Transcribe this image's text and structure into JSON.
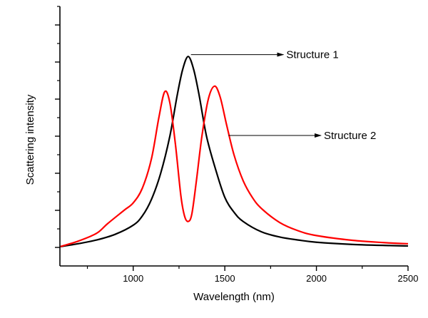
{
  "chart_data": {
    "type": "line",
    "title": "",
    "xlabel": "Wavelength (nm)",
    "ylabel": "Scattering intensity",
    "xlim": [
      600,
      2500
    ],
    "ylim": [
      -0.5,
      6.5
    ],
    "x_ticks_major": [
      1000,
      1500,
      2000,
      2500
    ],
    "x_ticks_minor": [
      750,
      1250,
      1750,
      2250
    ],
    "x_tick_labels": [
      "1000",
      "1500",
      "2000",
      "2500"
    ],
    "y_ticks_major": [
      0,
      1,
      2,
      3,
      4,
      5,
      6
    ],
    "y_ticks_minor": [
      0.5,
      1.5,
      2.5,
      3.5,
      4.5,
      5.5,
      6.5
    ],
    "y_tick_labels_shown": false,
    "grid": false,
    "legend": "none",
    "series": [
      {
        "name": "Structure 1",
        "color": "#000000",
        "x": [
          600,
          700,
          800,
          900,
          1000,
          1050,
          1100,
          1150,
          1200,
          1240,
          1270,
          1300,
          1330,
          1360,
          1400,
          1450,
          1500,
          1550,
          1600,
          1700,
          1800,
          1900,
          2000,
          2200,
          2400,
          2500
        ],
        "y": [
          0.02,
          0.1,
          0.2,
          0.35,
          0.6,
          0.85,
          1.3,
          2.0,
          3.0,
          4.1,
          4.8,
          5.15,
          4.8,
          4.1,
          3.0,
          2.1,
          1.35,
          0.95,
          0.7,
          0.42,
          0.28,
          0.2,
          0.14,
          0.08,
          0.05,
          0.04
        ]
      },
      {
        "name": "Structure 2",
        "color": "#ff0000",
        "x": [
          600,
          700,
          800,
          860,
          950,
          1000,
          1050,
          1100,
          1140,
          1172,
          1200,
          1230,
          1260,
          1280,
          1300,
          1320,
          1345,
          1375,
          1410,
          1444,
          1475,
          1510,
          1550,
          1600,
          1650,
          1700,
          1800,
          1900,
          2000,
          2200,
          2400,
          2500
        ],
        "y": [
          0.02,
          0.17,
          0.38,
          0.64,
          1.0,
          1.2,
          1.6,
          2.4,
          3.5,
          4.2,
          3.9,
          2.8,
          1.4,
          0.85,
          0.7,
          0.9,
          1.8,
          3.0,
          4.0,
          4.35,
          4.05,
          3.3,
          2.5,
          1.8,
          1.35,
          1.05,
          0.67,
          0.45,
          0.32,
          0.19,
          0.12,
          0.1
        ]
      }
    ],
    "annotations": [
      {
        "text": "Structure 1",
        "arrow_from": [
          1315,
          5.2
        ],
        "arrow_to": [
          1820,
          5.2
        ]
      },
      {
        "text": "Structure 2",
        "arrow_from": [
          1520,
          3.02
        ],
        "arrow_to": [
          2025,
          3.02
        ]
      }
    ]
  }
}
